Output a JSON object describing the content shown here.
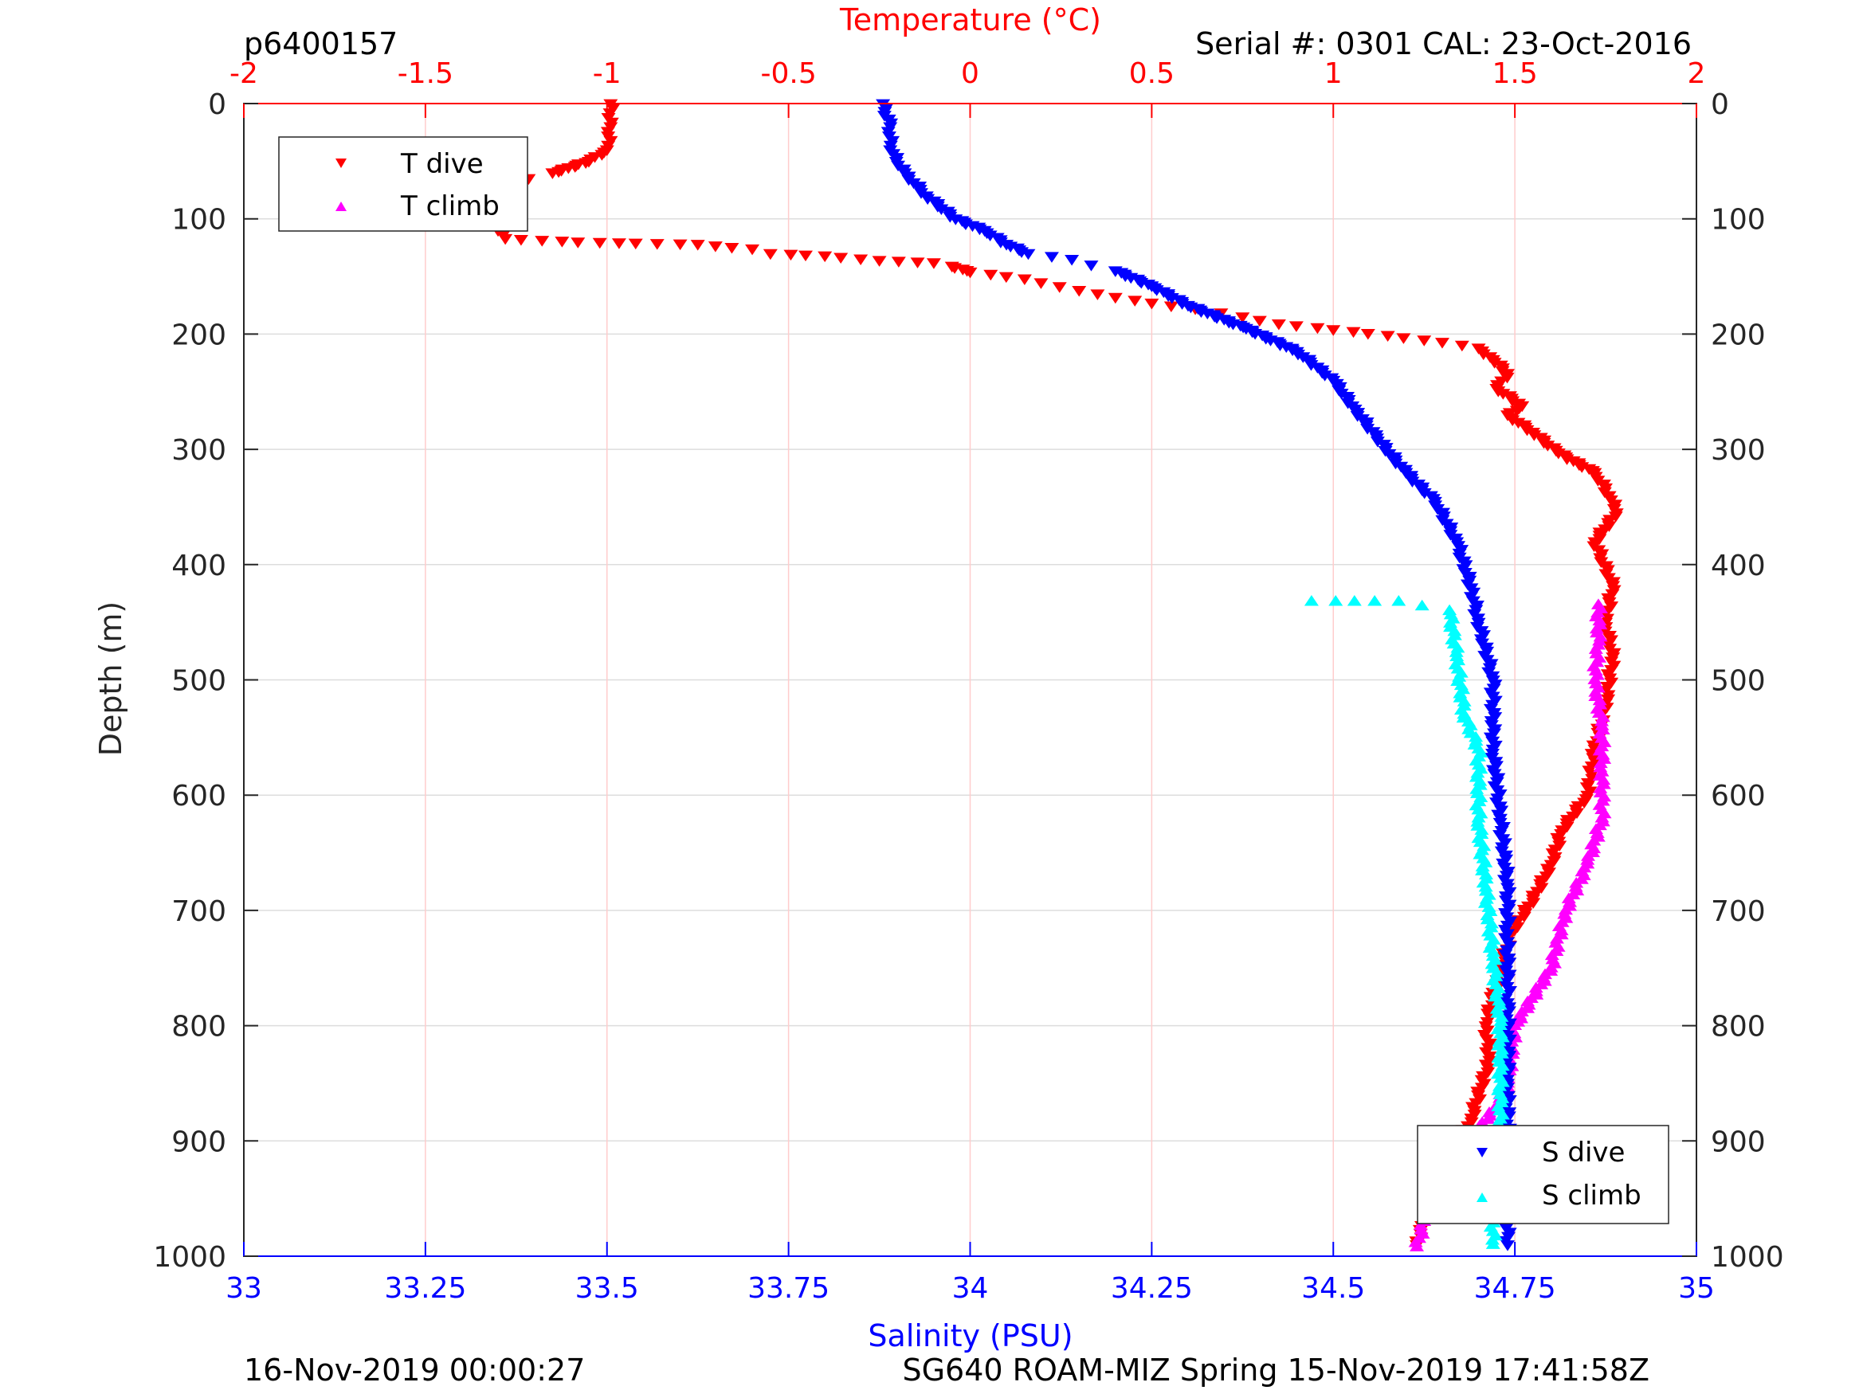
{
  "header": {
    "profile_id": "p6400157",
    "serial_cal": "Serial #: 0301  CAL: 23-Oct-2016"
  },
  "footer": {
    "processed": "16-Nov-2019 00:00:27",
    "mission": "SG640 ROAM-MIZ Spring 15-Nov-2019 17:41:58Z"
  },
  "colors": {
    "t_dive": "#ff0000",
    "t_climb": "#ff00ff",
    "s_dive": "#0000ff",
    "s_climb": "#00ffff",
    "temp_axis": "#ff0000",
    "sal_axis": "#0000ff",
    "grid": "#dddddd",
    "temp_grid": "#ffcccc"
  },
  "chart_data": {
    "type": "scatter",
    "title": "",
    "ylabel": "Depth (m)",
    "ylim": [
      0,
      1000
    ],
    "y_reversed": true,
    "yticks": [
      "0",
      "100",
      "200",
      "300",
      "400",
      "500",
      "600",
      "700",
      "800",
      "900",
      "1000"
    ],
    "temp_axis": {
      "label": "Temperature (°C)",
      "range": [
        -2,
        2
      ],
      "ticks": [
        "-2",
        "-1.5",
        "-1",
        "-0.5",
        "0",
        "0.5",
        "1",
        "1.5",
        "2"
      ]
    },
    "sal_axis": {
      "label": "Salinity (PSU)",
      "range": [
        33,
        35
      ],
      "ticks": [
        "33",
        "33.25",
        "33.5",
        "33.75",
        "34",
        "34.25",
        "34.5",
        "34.75",
        "35"
      ]
    },
    "grid": true,
    "legend_temp": {
      "position": "top-left",
      "entries": [
        "T dive",
        "T climb"
      ]
    },
    "legend_sal": {
      "position": "bottom-right",
      "entries": [
        "S dive",
        "S climb"
      ]
    },
    "series": [
      {
        "name": "T dive",
        "axis": "temperature",
        "marker": "triangle-down",
        "color": "#ff0000",
        "points": [
          [
            -0.99,
            0
          ],
          [
            -0.99,
            20
          ],
          [
            -1.0,
            40
          ],
          [
            -1.05,
            50
          ],
          [
            -1.15,
            60
          ],
          [
            -1.27,
            70
          ],
          [
            -1.29,
            85
          ],
          [
            -1.25,
            100
          ],
          [
            -1.3,
            110
          ],
          [
            -1.28,
            117
          ],
          [
            -1.08,
            120
          ],
          [
            -0.75,
            122
          ],
          [
            -0.6,
            126
          ],
          [
            -0.55,
            130
          ],
          [
            -0.4,
            132
          ],
          [
            -0.25,
            136
          ],
          [
            -0.1,
            138
          ],
          [
            -0.05,
            141
          ],
          [
            0.0,
            146
          ],
          [
            0.15,
            152
          ],
          [
            0.3,
            162
          ],
          [
            0.4,
            168
          ],
          [
            0.5,
            173
          ],
          [
            0.62,
            178
          ],
          [
            0.75,
            185
          ],
          [
            0.85,
            191
          ],
          [
            1.0,
            196
          ],
          [
            1.15,
            201
          ],
          [
            1.3,
            207
          ],
          [
            1.4,
            212
          ],
          [
            1.44,
            222
          ],
          [
            1.48,
            234
          ],
          [
            1.45,
            247
          ],
          [
            1.52,
            262
          ],
          [
            1.48,
            270
          ],
          [
            1.55,
            285
          ],
          [
            1.62,
            303
          ],
          [
            1.72,
            320
          ],
          [
            1.76,
            340
          ],
          [
            1.78,
            355
          ],
          [
            1.72,
            380
          ],
          [
            1.77,
            418
          ],
          [
            1.75,
            450
          ],
          [
            1.77,
            480
          ],
          [
            1.75,
            520
          ],
          [
            1.72,
            560
          ],
          [
            1.7,
            600
          ],
          [
            1.63,
            630
          ],
          [
            1.6,
            660
          ],
          [
            1.55,
            690
          ],
          [
            1.49,
            720
          ],
          [
            1.45,
            760
          ],
          [
            1.42,
            800
          ],
          [
            1.43,
            830
          ],
          [
            1.38,
            880
          ],
          [
            1.33,
            910
          ],
          [
            1.27,
            950
          ],
          [
            1.24,
            980
          ],
          [
            1.23,
            990
          ]
        ]
      },
      {
        "name": "T climb",
        "axis": "temperature",
        "marker": "triangle-up",
        "color": "#ff00ff",
        "points": [
          [
            1.73,
            435
          ],
          [
            1.73,
            470
          ],
          [
            1.72,
            500
          ],
          [
            1.74,
            540
          ],
          [
            1.74,
            580
          ],
          [
            1.74,
            620
          ],
          [
            1.7,
            660
          ],
          [
            1.64,
            700
          ],
          [
            1.6,
            750
          ],
          [
            1.5,
            800
          ],
          [
            1.48,
            850
          ],
          [
            1.45,
            870
          ],
          [
            1.4,
            890
          ],
          [
            1.3,
            940
          ],
          [
            1.25,
            970
          ],
          [
            1.23,
            992
          ]
        ]
      },
      {
        "name": "S dive",
        "axis": "salinity",
        "marker": "triangle-down",
        "color": "#0000ff",
        "points": [
          [
            33.88,
            0
          ],
          [
            33.89,
            20
          ],
          [
            33.89,
            40
          ],
          [
            33.91,
            60
          ],
          [
            33.94,
            80
          ],
          [
            33.98,
            100
          ],
          [
            34.02,
            110
          ],
          [
            34.05,
            122
          ],
          [
            34.08,
            130
          ],
          [
            34.14,
            135
          ],
          [
            34.2,
            145
          ],
          [
            34.25,
            158
          ],
          [
            34.3,
            175
          ],
          [
            34.38,
            195
          ],
          [
            34.45,
            215
          ],
          [
            34.5,
            240
          ],
          [
            34.53,
            265
          ],
          [
            34.56,
            290
          ],
          [
            34.6,
            320
          ],
          [
            34.64,
            345
          ],
          [
            34.67,
            380
          ],
          [
            34.69,
            420
          ],
          [
            34.7,
            450
          ],
          [
            34.72,
            500
          ],
          [
            34.72,
            560
          ],
          [
            34.73,
            620
          ],
          [
            34.74,
            680
          ],
          [
            34.74,
            720
          ],
          [
            34.74,
            780
          ],
          [
            34.74,
            850
          ],
          [
            34.74,
            910
          ],
          [
            34.74,
            950
          ],
          [
            34.74,
            990
          ]
        ]
      },
      {
        "name": "S climb",
        "axis": "salinity",
        "marker": "triangle-up",
        "color": "#00ffff",
        "points": [
          [
            34.47,
            432
          ],
          [
            34.59,
            432
          ],
          [
            34.66,
            440
          ],
          [
            34.67,
            480
          ],
          [
            34.68,
            530
          ],
          [
            34.7,
            560
          ],
          [
            34.7,
            620
          ],
          [
            34.71,
            680
          ],
          [
            34.72,
            740
          ],
          [
            34.73,
            800
          ],
          [
            34.73,
            860
          ],
          [
            34.73,
            920
          ],
          [
            34.72,
            960
          ],
          [
            34.72,
            990
          ]
        ]
      }
    ]
  }
}
